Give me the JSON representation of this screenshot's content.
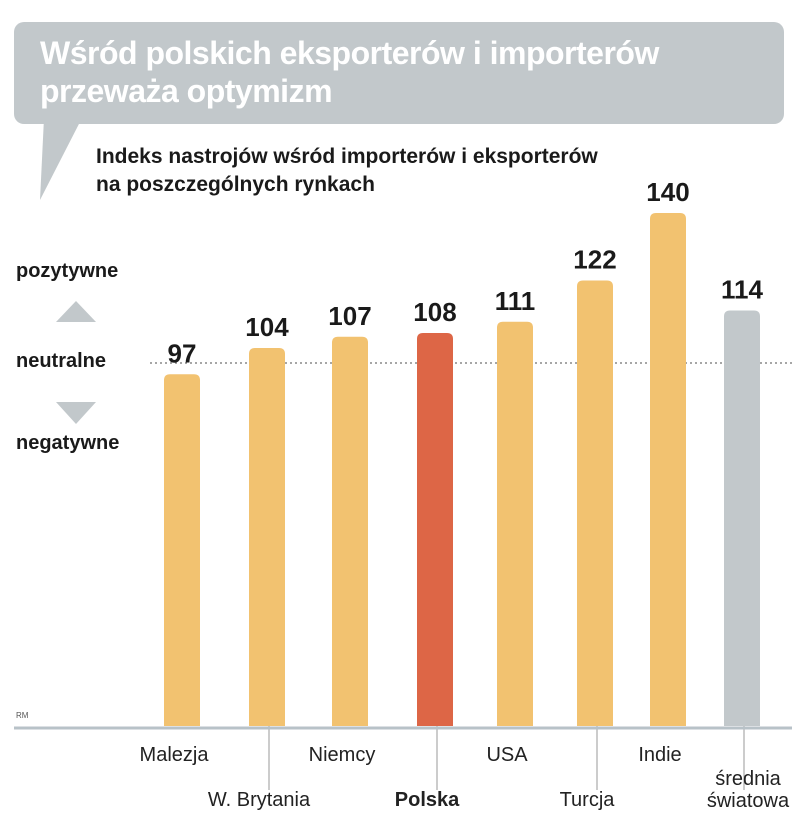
{
  "chart_data": {
    "type": "bar",
    "title": "Wśród polskich eksporterów i importerów przeważa optymizm",
    "subtitle_line1": "Indeks nastrojów wśród importerów i eksporterów",
    "subtitle_line2": "na poszczególnych rynkach",
    "categories": [
      "Malezja",
      "W. Brytania",
      "Niemcy",
      "Polska",
      "USA",
      "Turcja",
      "Indie",
      "średnia światowa"
    ],
    "values": [
      97,
      104,
      107,
      108,
      111,
      122,
      140,
      114
    ],
    "reference_line": {
      "value": 100,
      "label": "neutralne"
    },
    "above_label": "pozytywne",
    "below_label": "negatywne",
    "highlight": "Polska",
    "colors": {
      "default": "#f2c270",
      "highlight": "#dd6646",
      "average": "#c2c8cb"
    },
    "credit": "RM"
  }
}
